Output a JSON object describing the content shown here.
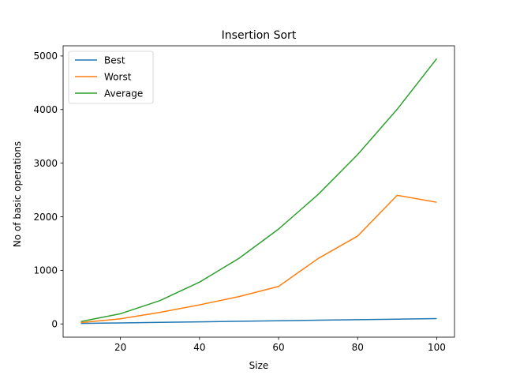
{
  "chart_data": {
    "type": "line",
    "title": "Insertion Sort",
    "xlabel": "Size",
    "ylabel": "No of basic operations",
    "x": [
      10,
      20,
      30,
      40,
      50,
      60,
      70,
      80,
      90,
      100
    ],
    "xlim": [
      5.5,
      104.5
    ],
    "ylim": [
      -247,
      5190
    ],
    "xticks": [
      20,
      40,
      60,
      80,
      100
    ],
    "yticks": [
      0,
      1000,
      2000,
      3000,
      4000,
      5000
    ],
    "grid": false,
    "legend_position": "upper-left",
    "series": [
      {
        "name": "Best",
        "color": "#1f77b4",
        "values": [
          9,
          19,
          29,
          39,
          49,
          59,
          69,
          79,
          89,
          99
        ]
      },
      {
        "name": "Worst",
        "color": "#ff7f0e",
        "values": [
          25,
          95,
          215,
          355,
          510,
          700,
          1220,
          1640,
          2400,
          2270
        ]
      },
      {
        "name": "Average",
        "color": "#2ca02c",
        "values": [
          45,
          190,
          435,
          780,
          1225,
          1770,
          2415,
          3160,
          4005,
          4950
        ]
      }
    ]
  }
}
